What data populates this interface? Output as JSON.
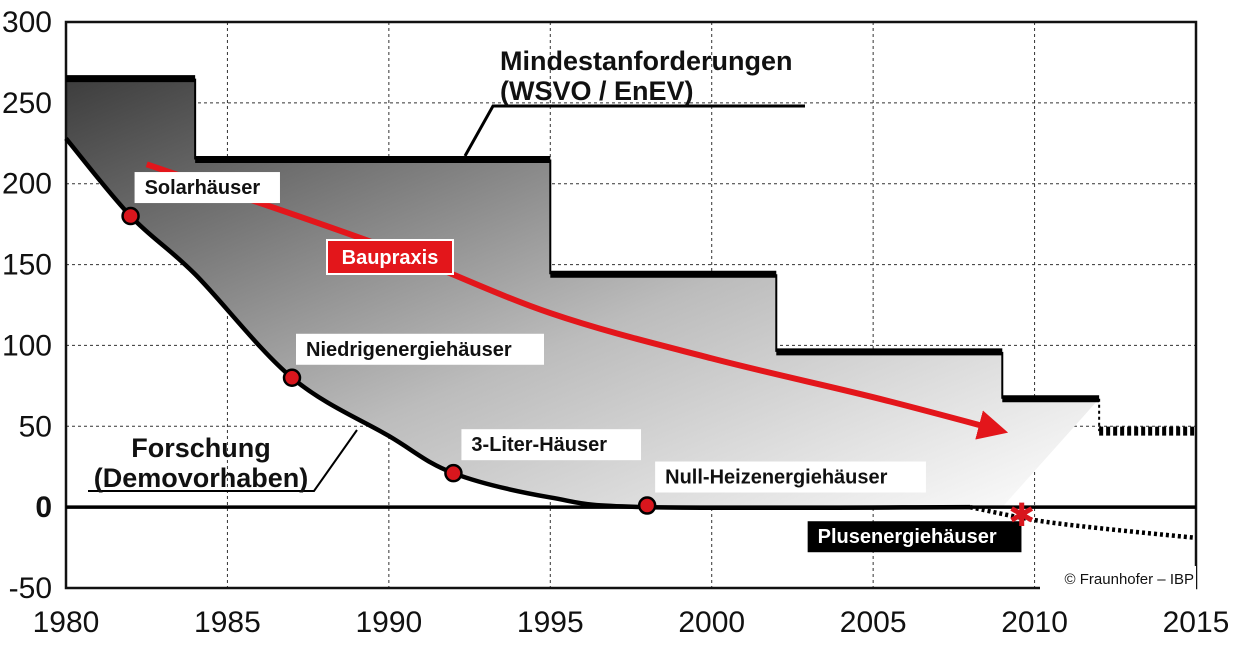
{
  "chart_data": {
    "type": "line",
    "xlim": [
      1980,
      2015
    ],
    "ylim": [
      -50,
      300
    ],
    "x_ticks": [
      "1980",
      "1985",
      "1990",
      "1995",
      "2000",
      "2005",
      "2010",
      "2015"
    ],
    "y_ticks": [
      "300",
      "250",
      "200",
      "150",
      "100",
      "50",
      "0",
      "-50"
    ],
    "grid": true,
    "series": [
      {
        "name": "Mindestanforderungen (WSVO / EnEV)",
        "style": "step",
        "segments": [
          {
            "x": [
              1980,
              1984
            ],
            "y": 265
          },
          {
            "x": [
              1984,
              1995
            ],
            "y": 215
          },
          {
            "x": [
              1995,
              2002
            ],
            "y": 144
          },
          {
            "x": [
              2002,
              2009
            ],
            "y": 96
          },
          {
            "x": [
              2009,
              2012
            ],
            "y": 67
          }
        ],
        "projected": {
          "x": [
            2012,
            2015
          ],
          "y": 47
        }
      },
      {
        "name": "Forschung (Demovorhaben)",
        "style": "curve",
        "points": [
          [
            1980,
            228
          ],
          [
            1982,
            180
          ],
          [
            1984,
            144
          ],
          [
            1987,
            80
          ],
          [
            1990,
            44
          ],
          [
            1992,
            21
          ],
          [
            1995,
            6
          ],
          [
            1998,
            0
          ],
          [
            2008,
            0
          ]
        ],
        "projected": [
          [
            2008,
            0
          ],
          [
            2010,
            -8
          ],
          [
            2012,
            -13
          ],
          [
            2015,
            -19
          ]
        ]
      },
      {
        "name": "Baupraxis",
        "style": "arrow",
        "points": [
          [
            1982.5,
            212
          ],
          [
            1985,
            195
          ],
          [
            1990,
            160
          ],
          [
            1995,
            120
          ],
          [
            2000,
            92
          ],
          [
            2005,
            68
          ],
          [
            2009,
            47
          ]
        ]
      }
    ],
    "milestones": [
      {
        "label": "Solarhäuser",
        "x": 1982,
        "y": 180
      },
      {
        "label": "Niedrigenergiehäuser",
        "x": 1987,
        "y": 80
      },
      {
        "label": "3-Liter-Häuser",
        "x": 1992,
        "y": 21
      },
      {
        "label": "Null-Heizenergiehäuser",
        "x": 1998,
        "y": 1
      },
      {
        "label": "Plusenergiehäuser",
        "x": 2009.6,
        "y": -5
      }
    ],
    "annotations": {
      "standards_label": [
        "Mindestanforderungen",
        "(WSVO / EnEV)"
      ],
      "research_label": [
        "Forschung",
        "(Demovorhaben)"
      ],
      "practice_label": "Baupraxis",
      "credit": "© Fraunhofer – IBP"
    },
    "colors": {
      "practice": "#e3161b",
      "marker": "#d8161d",
      "line": "#000000",
      "grid": "#333333",
      "fill_dark": "#4a4a4a",
      "fill_light": "#ffffff"
    }
  }
}
